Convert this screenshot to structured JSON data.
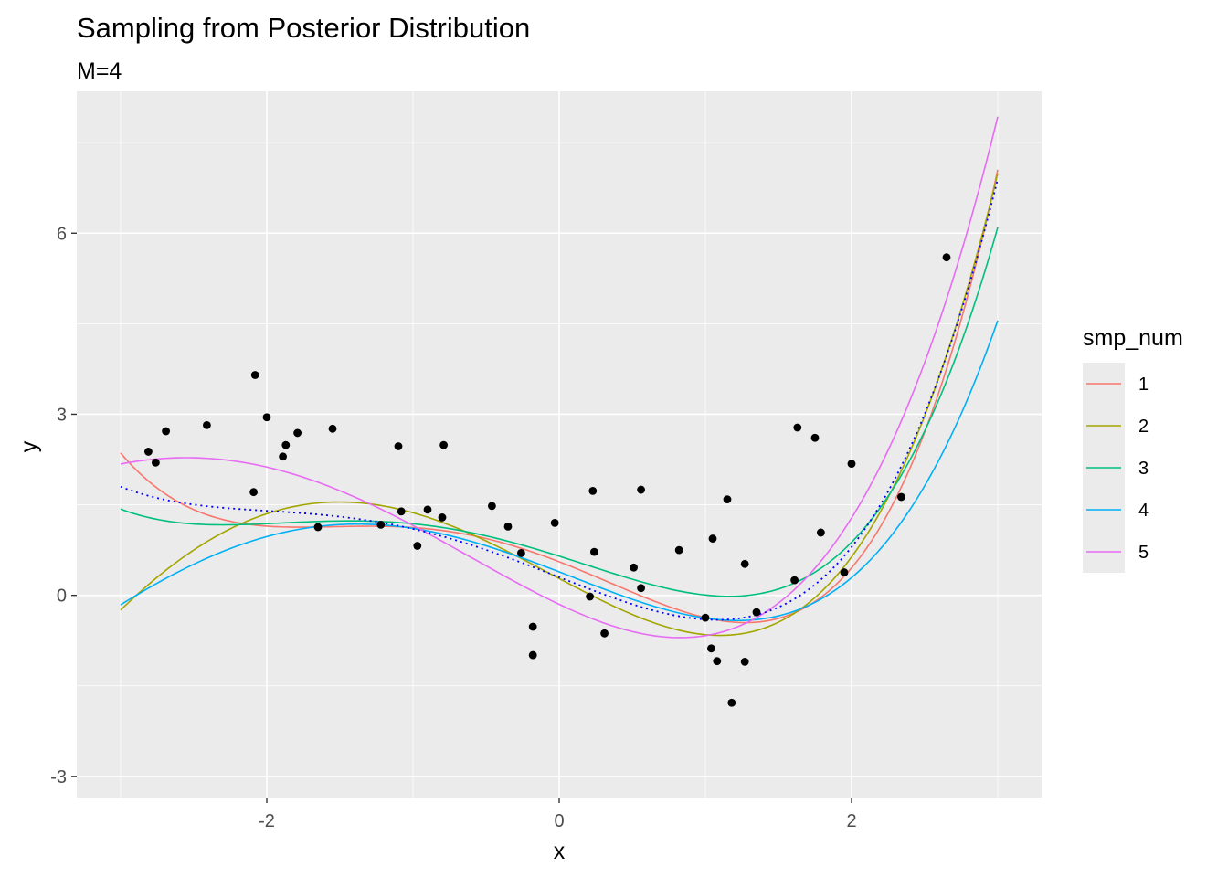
{
  "chart_data": {
    "type": "line",
    "title": "Sampling from Posterior Distribution",
    "subtitle": "M=4",
    "xlabel": "x",
    "ylabel": "y",
    "xlim": [
      -3.3,
      3.3
    ],
    "ylim": [
      -3.35,
      8.35
    ],
    "x_ticks": [
      -2,
      0,
      2
    ],
    "x_tick_labels": [
      "-2",
      "0",
      "2"
    ],
    "y_ticks": [
      -3,
      0,
      3,
      6
    ],
    "y_tick_labels": [
      "-3",
      "0",
      "3",
      "6"
    ],
    "grid": true,
    "legend": {
      "title": "smp_num",
      "position": "right",
      "entries": [
        "1",
        "2",
        "3",
        "4",
        "5"
      ]
    },
    "curve_x_range": [
      -3,
      3
    ],
    "series": [
      {
        "name": "1",
        "color": "#F8766D",
        "coefficients": [
          0.556,
          -0.937,
          -0.259,
          0.191,
          0.08
        ]
      },
      {
        "name": "2",
        "color": "#A3A500",
        "coefficients": [
          0.278,
          -1.287,
          0.047,
          0.277,
          0.033
        ]
      },
      {
        "name": "3",
        "color": "#00BF7D",
        "coefficients": [
          0.649,
          -0.761,
          -0.104,
          0.171,
          0.05
        ]
      },
      {
        "name": "4",
        "color": "#00B0F6",
        "coefficients": [
          0.389,
          -0.934,
          -0.051,
          0.191,
          0.028
        ]
      },
      {
        "name": "5",
        "color": "#E76BF3",
        "coefficients": [
          -0.149,
          -1.147,
          0.371,
          0.234,
          0.023
        ]
      }
    ],
    "true_function": {
      "color": "#0000FF",
      "style": "dotted",
      "coefficients": [
        0.3,
        -0.95,
        0.0,
        0.2,
        0.05
      ]
    },
    "points": [
      {
        "x": -2.81,
        "y": 2.38
      },
      {
        "x": -2.76,
        "y": 2.2
      },
      {
        "x": -2.69,
        "y": 2.72
      },
      {
        "x": -2.41,
        "y": 2.82
      },
      {
        "x": -2.09,
        "y": 1.71
      },
      {
        "x": -2.08,
        "y": 3.65
      },
      {
        "x": -2.0,
        "y": 2.95
      },
      {
        "x": -1.89,
        "y": 2.3
      },
      {
        "x": -1.87,
        "y": 2.49
      },
      {
        "x": -1.79,
        "y": 2.69
      },
      {
        "x": -1.65,
        "y": 1.13
      },
      {
        "x": -1.55,
        "y": 2.76
      },
      {
        "x": -1.22,
        "y": 1.17
      },
      {
        "x": -1.1,
        "y": 2.47
      },
      {
        "x": -1.08,
        "y": 1.39
      },
      {
        "x": -0.97,
        "y": 0.82
      },
      {
        "x": -0.9,
        "y": 1.42
      },
      {
        "x": -0.8,
        "y": 1.29
      },
      {
        "x": -0.79,
        "y": 2.49
      },
      {
        "x": -0.46,
        "y": 1.48
      },
      {
        "x": -0.35,
        "y": 1.14
      },
      {
        "x": -0.26,
        "y": 0.7
      },
      {
        "x": -0.18,
        "y": -0.52
      },
      {
        "x": -0.18,
        "y": -0.99
      },
      {
        "x": -0.03,
        "y": 1.2
      },
      {
        "x": 0.21,
        "y": -0.02
      },
      {
        "x": 0.23,
        "y": 1.73
      },
      {
        "x": 0.24,
        "y": 0.72
      },
      {
        "x": 0.31,
        "y": -0.63
      },
      {
        "x": 0.51,
        "y": 0.46
      },
      {
        "x": 0.56,
        "y": 1.75
      },
      {
        "x": 0.56,
        "y": 0.12
      },
      {
        "x": 0.82,
        "y": 0.75
      },
      {
        "x": 1.0,
        "y": -0.37
      },
      {
        "x": 1.04,
        "y": -0.88
      },
      {
        "x": 1.05,
        "y": 0.94
      },
      {
        "x": 1.08,
        "y": -1.09
      },
      {
        "x": 1.15,
        "y": 1.59
      },
      {
        "x": 1.18,
        "y": -1.78
      },
      {
        "x": 1.27,
        "y": -1.1
      },
      {
        "x": 1.27,
        "y": 0.52
      },
      {
        "x": 1.35,
        "y": -0.28
      },
      {
        "x": 1.61,
        "y": 0.25
      },
      {
        "x": 1.63,
        "y": 2.78
      },
      {
        "x": 1.75,
        "y": 2.61
      },
      {
        "x": 1.79,
        "y": 1.04
      },
      {
        "x": 1.95,
        "y": 0.38
      },
      {
        "x": 2.0,
        "y": 2.18
      },
      {
        "x": 2.34,
        "y": 1.63
      },
      {
        "x": 2.65,
        "y": 5.6
      }
    ]
  }
}
